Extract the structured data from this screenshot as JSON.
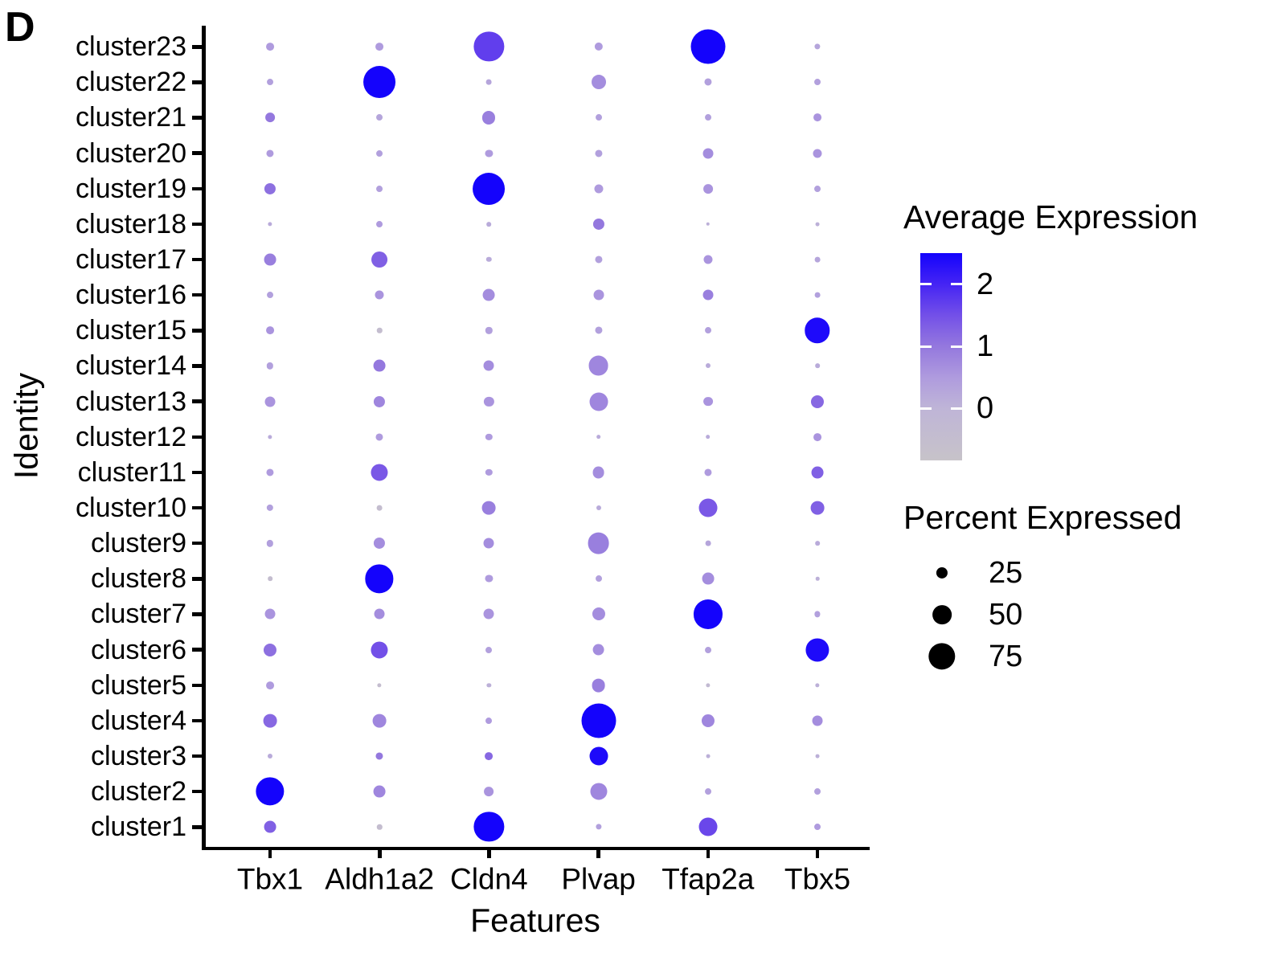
{
  "panel_label": "D",
  "y_axis": {
    "title": "Identity"
  },
  "x_axis": {
    "title": "Features"
  },
  "legend_expression": {
    "title": "Average Expression",
    "ticks": [
      "2",
      "1",
      "0"
    ],
    "tick_values": [
      2,
      1,
      0
    ],
    "domain": [
      -0.83,
      2.5
    ],
    "top_color": "#1403FC",
    "bottom_color": "#C7C3C9"
  },
  "legend_percent": {
    "title": "Percent Expressed",
    "items": [
      {
        "label": "25",
        "pct": 25
      },
      {
        "label": "50",
        "pct": 50
      },
      {
        "label": "75",
        "pct": 75
      }
    ]
  },
  "chart_data": {
    "type": "scatter",
    "subtype": "dotplot",
    "xlabel": "Features",
    "ylabel": "Identity",
    "genes": [
      "Tbx1",
      "Aldh1a2",
      "Cldn4",
      "Plvap",
      "Tfap2a",
      "Tbx5"
    ],
    "clusters": [
      "cluster23",
      "cluster22",
      "cluster21",
      "cluster20",
      "cluster19",
      "cluster18",
      "cluster17",
      "cluster16",
      "cluster15",
      "cluster14",
      "cluster13",
      "cluster12",
      "cluster11",
      "cluster10",
      "cluster9",
      "cluster8",
      "cluster7",
      "cluster6",
      "cluster5",
      "cluster4",
      "cluster3",
      "cluster2",
      "cluster1"
    ],
    "legend_note": "rows ordered top-to-bottom matching clusters[], columns follow genes[]; pct = Percent Expressed (dot size), exp = Average Expression (dot color)",
    "pct": [
      [
        14,
        14,
        85,
        15,
        100,
        7
      ],
      [
        9,
        92,
        6,
        35,
        12,
        9
      ],
      [
        19,
        9,
        30,
        9,
        9,
        14
      ],
      [
        12,
        9,
        12,
        12,
        22,
        17
      ],
      [
        25,
        9,
        92,
        17,
        19,
        9
      ],
      [
        2,
        9,
        3,
        25,
        0,
        1
      ],
      [
        27,
        40,
        5,
        12,
        17,
        6
      ],
      [
        9,
        17,
        27,
        22,
        22,
        6
      ],
      [
        14,
        5,
        10,
        12,
        9,
        70
      ],
      [
        10,
        27,
        22,
        53,
        4,
        3
      ],
      [
        22,
        25,
        20,
        48,
        19,
        30
      ],
      [
        2,
        12,
        10,
        3,
        3,
        14
      ],
      [
        12,
        43,
        10,
        27,
        12,
        27
      ],
      [
        10,
        6,
        32,
        4,
        48,
        32
      ],
      [
        10,
        25,
        22,
        58,
        6,
        3
      ],
      [
        3,
        80,
        12,
        9,
        27,
        0
      ],
      [
        22,
        22,
        22,
        30,
        82,
        7
      ],
      [
        30,
        43,
        9,
        27,
        9,
        64
      ],
      [
        14,
        2,
        2,
        32,
        2,
        2
      ],
      [
        32,
        32,
        9,
        100,
        30,
        22
      ],
      [
        4,
        12,
        14,
        48,
        1,
        1
      ],
      [
        80,
        27,
        19,
        43,
        9,
        9
      ],
      [
        27,
        5,
        85,
        7,
        48,
        9
      ]
    ],
    "exp": [
      [
        0.5,
        0.5,
        1.7,
        0.5,
        2.5,
        0.3
      ],
      [
        0.4,
        2.5,
        0.3,
        0.7,
        0.4,
        0.4
      ],
      [
        1.0,
        0.3,
        0.9,
        0.4,
        0.4,
        0.6
      ],
      [
        0.5,
        0.4,
        0.5,
        0.4,
        0.7,
        0.6
      ],
      [
        1.1,
        0.4,
        2.5,
        0.5,
        0.6,
        0.4
      ],
      [
        0.2,
        0.5,
        0.2,
        1.0,
        0.1,
        0.1
      ],
      [
        0.9,
        1.3,
        0.2,
        0.4,
        0.6,
        0.3
      ],
      [
        0.4,
        0.6,
        0.7,
        0.6,
        0.9,
        0.4
      ],
      [
        0.6,
        -0.5,
        0.4,
        0.4,
        0.4,
        2.4
      ],
      [
        0.4,
        1.0,
        0.7,
        0.8,
        0.2,
        0.2
      ],
      [
        0.6,
        0.8,
        0.6,
        0.8,
        0.6,
        1.2
      ],
      [
        0.2,
        0.5,
        0.5,
        0.2,
        0.2,
        0.6
      ],
      [
        0.5,
        1.4,
        0.5,
        0.7,
        0.5,
        1.3
      ],
      [
        0.4,
        -0.5,
        0.9,
        0.2,
        1.4,
        1.3
      ],
      [
        0.4,
        0.7,
        0.7,
        0.9,
        0.3,
        0.2
      ],
      [
        -0.5,
        2.5,
        0.5,
        0.4,
        0.7,
        0.1
      ],
      [
        0.6,
        0.7,
        0.6,
        0.7,
        2.5,
        0.4
      ],
      [
        1.1,
        1.5,
        0.4,
        0.7,
        0.4,
        2.4
      ],
      [
        0.5,
        -0.5,
        0.1,
        0.9,
        -0.3,
        0.1
      ],
      [
        1.2,
        0.8,
        0.5,
        2.5,
        0.8,
        0.7
      ],
      [
        0.2,
        1.0,
        1.2,
        2.4,
        0.1,
        0.1
      ],
      [
        2.5,
        0.8,
        0.6,
        0.8,
        0.4,
        0.4
      ],
      [
        1.3,
        -0.5,
        2.5,
        0.4,
        1.6,
        0.5
      ]
    ],
    "color_scale": {
      "stops": [
        {
          "value": -0.83,
          "color": "#C7C3C9"
        },
        {
          "value": 0.0,
          "color": "#BFB5D7"
        },
        {
          "value": 0.5,
          "color": "#AF9BDE"
        },
        {
          "value": 1.0,
          "color": "#9478DE"
        },
        {
          "value": 1.5,
          "color": "#7350E8"
        },
        {
          "value": 2.0,
          "color": "#4524F4"
        },
        {
          "value": 2.5,
          "color": "#1403FC"
        }
      ]
    }
  }
}
